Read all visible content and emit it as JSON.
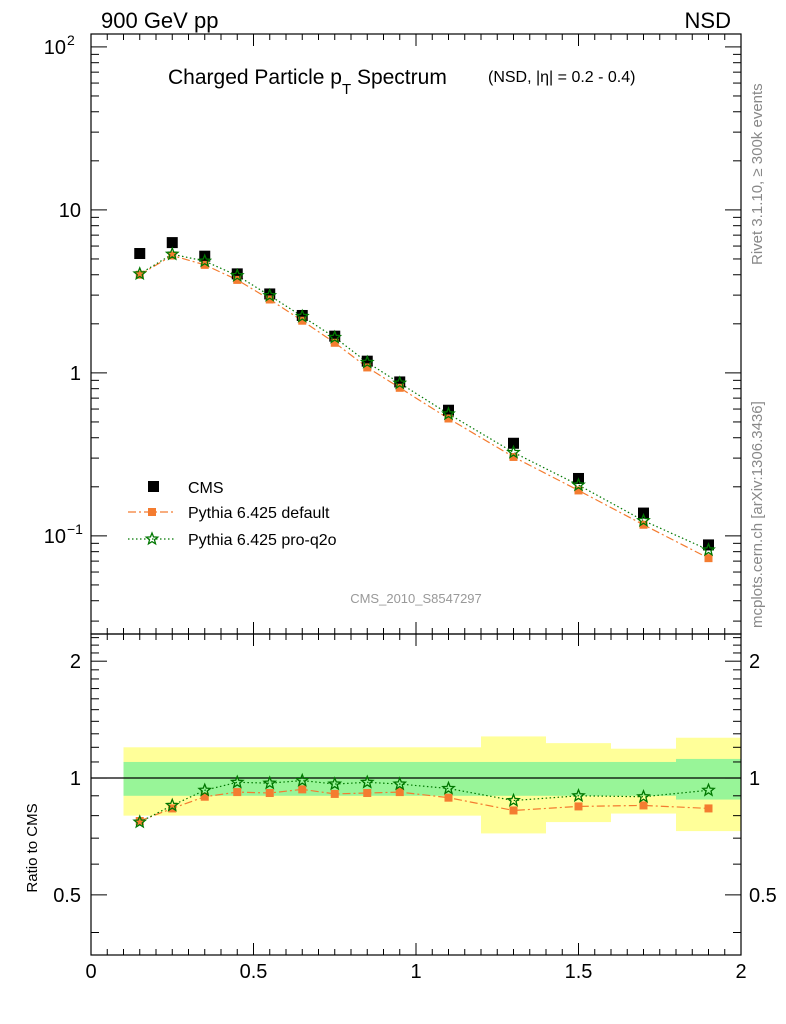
{
  "header": {
    "left": "900 GeV pp",
    "right": "NSD"
  },
  "title": {
    "main": "Charged Particle p",
    "sub": "T",
    "main2": " Spectrum",
    "detail": "(NSD, |η| = 0.2 - 0.4)"
  },
  "side_labels": {
    "rivet": "Rivet 3.1.10, ≥ 300k events",
    "mcplots": "mcplots.cern.ch [arXiv:1306.3436]"
  },
  "ref_label": "CMS_2010_S8547297",
  "ratio_ylabel": "Ratio to CMS",
  "top_ticks": [
    {
      "v": 100,
      "base": "10",
      "exp": "2"
    },
    {
      "v": 10,
      "base": "10",
      "exp": ""
    },
    {
      "v": 1,
      "base": "1",
      "exp": ""
    },
    {
      "v": 0.1,
      "base": "10",
      "exp": "−1"
    }
  ],
  "ratio_ticks": [
    {
      "v": 2,
      "label": "2"
    },
    {
      "v": 1,
      "label": "1"
    },
    {
      "v": 0.5,
      "label": "0.5"
    }
  ],
  "x_ticks": [
    {
      "v": 0,
      "label": "0"
    },
    {
      "v": 0.5,
      "label": "0.5"
    },
    {
      "v": 1,
      "label": "1"
    },
    {
      "v": 1.5,
      "label": "1.5"
    },
    {
      "v": 2,
      "label": "2"
    }
  ],
  "chart_data": {
    "type": "scatter",
    "x_range": [
      0,
      2
    ],
    "y_range_top": [
      0.025,
      120
    ],
    "y_scale_top": "log",
    "y_range_ratio": [
      0.35,
      2.35
    ],
    "y_scale_ratio": "log",
    "legend_position": "bottom-left",
    "x": [
      0.15,
      0.25,
      0.35,
      0.45,
      0.55,
      0.65,
      0.75,
      0.85,
      0.95,
      1.1,
      1.3,
      1.5,
      1.7,
      1.9
    ],
    "bins": [
      [
        0.1,
        0.2
      ],
      [
        0.2,
        0.3
      ],
      [
        0.3,
        0.4
      ],
      [
        0.4,
        0.5
      ],
      [
        0.5,
        0.6
      ],
      [
        0.6,
        0.7
      ],
      [
        0.7,
        0.8
      ],
      [
        0.8,
        0.9
      ],
      [
        0.9,
        1.0
      ],
      [
        1.0,
        1.2
      ],
      [
        1.2,
        1.4
      ],
      [
        1.4,
        1.6
      ],
      [
        1.6,
        1.8
      ],
      [
        1.8,
        2.0
      ]
    ],
    "series": [
      {
        "name": "CMS",
        "color": "#000000",
        "marker": "square",
        "values": [
          5.4,
          6.3,
          5.2,
          4.05,
          3.05,
          2.25,
          1.68,
          1.18,
          0.88,
          0.59,
          0.37,
          0.225,
          0.138,
          0.088
        ]
      },
      {
        "name": "Pythia 6.425 default",
        "color": "#f47c30",
        "marker": "square",
        "line": "dashdot",
        "values": [
          4.0,
          5.25,
          4.6,
          3.72,
          2.82,
          2.09,
          1.53,
          1.08,
          0.81,
          0.525,
          0.305,
          0.19,
          0.117,
          0.073
        ]
      },
      {
        "name": "Pythia 6.425 pro-q2o",
        "color": "#007700",
        "marker": "star",
        "line": "dotted",
        "values": [
          4.05,
          5.35,
          4.85,
          3.95,
          2.98,
          2.22,
          1.65,
          1.16,
          0.865,
          0.56,
          0.325,
          0.205,
          0.124,
          0.082
        ]
      }
    ],
    "ratios": [
      {
        "name": "Pythia 6.425 default",
        "values": [
          0.775,
          0.835,
          0.895,
          0.92,
          0.915,
          0.935,
          0.91,
          0.915,
          0.92,
          0.89,
          0.825,
          0.845,
          0.85,
          0.835
        ]
      },
      {
        "name": "Pythia 6.425 pro-q2o",
        "values": [
          0.77,
          0.85,
          0.93,
          0.975,
          0.97,
          0.985,
          0.965,
          0.975,
          0.965,
          0.94,
          0.875,
          0.9,
          0.895,
          0.93
        ]
      }
    ],
    "band_green": [
      0.1,
      0.1,
      0.1,
      0.1,
      0.1,
      0.1,
      0.1,
      0.1,
      0.1,
      0.1,
      0.1,
      0.1,
      0.1,
      0.12
    ],
    "band_yellow": [
      0.2,
      0.2,
      0.2,
      0.2,
      0.2,
      0.2,
      0.2,
      0.2,
      0.2,
      0.2,
      0.28,
      0.23,
      0.19,
      0.27
    ]
  }
}
